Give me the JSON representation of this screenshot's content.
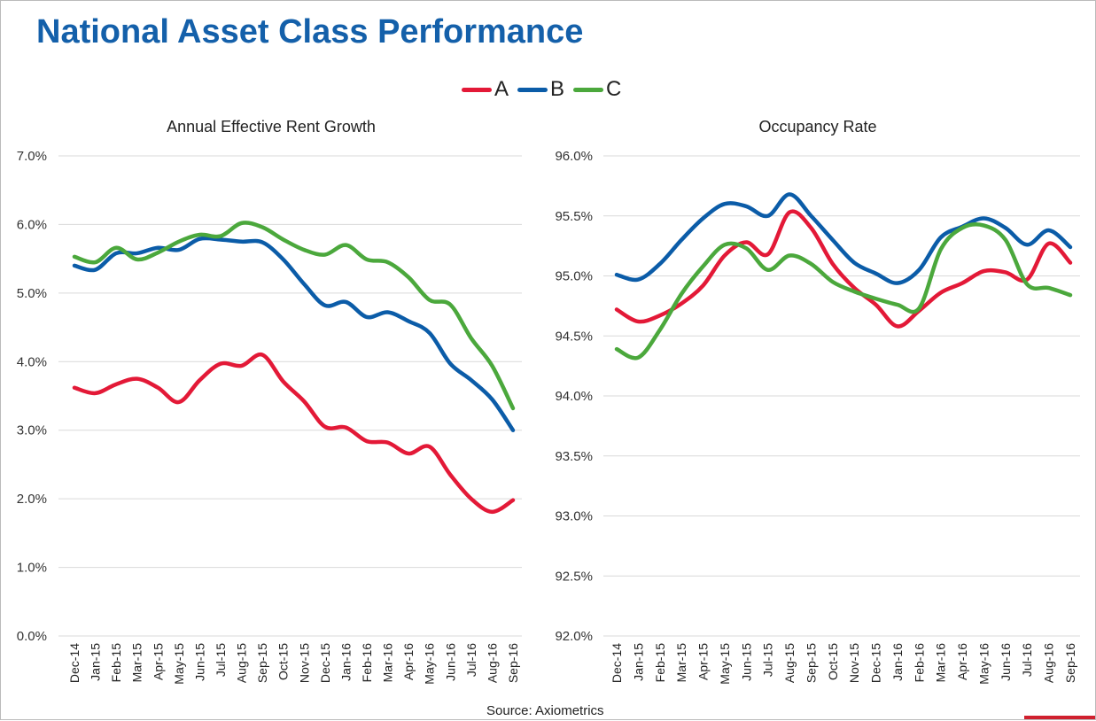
{
  "title": "National Asset Class Performance",
  "source": "Source: Axiometrics",
  "legend": [
    {
      "name": "A",
      "color": "#e31937"
    },
    {
      "name": "B",
      "color": "#0b5ca8"
    },
    {
      "name": "C",
      "color": "#4ba83c"
    }
  ],
  "chart_data": [
    {
      "type": "line",
      "title": "Annual Effective Rent Growth",
      "ylim": [
        0,
        7
      ],
      "yticks": [
        "0.0%",
        "1.0%",
        "2.0%",
        "3.0%",
        "4.0%",
        "5.0%",
        "6.0%",
        "7.0%"
      ],
      "grid": true,
      "categories": [
        "Dec-14",
        "Jan-15",
        "Feb-15",
        "Mar-15",
        "Apr-15",
        "May-15",
        "Jun-15",
        "Jul-15",
        "Aug-15",
        "Sep-15",
        "Oct-15",
        "Nov-15",
        "Dec-15",
        "Jan-16",
        "Feb-16",
        "Mar-16",
        "Apr-16",
        "May-16",
        "Jun-16",
        "Jul-16",
        "Aug-16",
        "Sep-16"
      ],
      "series": [
        {
          "name": "A",
          "values": [
            3.62,
            3.54,
            3.67,
            3.75,
            3.62,
            3.41,
            3.73,
            3.97,
            3.94,
            4.1,
            3.71,
            3.42,
            3.05,
            3.04,
            2.84,
            2.82,
            2.66,
            2.76,
            2.35,
            2.0,
            1.81,
            1.98
          ]
        },
        {
          "name": "B",
          "values": [
            5.4,
            5.34,
            5.58,
            5.58,
            5.66,
            5.63,
            5.79,
            5.78,
            5.75,
            5.74,
            5.49,
            5.13,
            4.82,
            4.87,
            4.65,
            4.72,
            4.59,
            4.42,
            3.97,
            3.73,
            3.45,
            3.0
          ]
        },
        {
          "name": "C",
          "values": [
            5.53,
            5.45,
            5.66,
            5.49,
            5.59,
            5.75,
            5.85,
            5.83,
            6.02,
            5.96,
            5.78,
            5.63,
            5.56,
            5.7,
            5.49,
            5.45,
            5.23,
            4.9,
            4.83,
            4.34,
            3.94,
            3.32
          ]
        }
      ]
    },
    {
      "type": "line",
      "title": "Occupancy Rate",
      "ylim": [
        92,
        96
      ],
      "yticks": [
        "92.0%",
        "92.5%",
        "93.0%",
        "93.5%",
        "94.0%",
        "94.5%",
        "95.0%",
        "95.5%",
        "96.0%"
      ],
      "grid": true,
      "categories": [
        "Dec-14",
        "Jan-15",
        "Feb-15",
        "Mar-15",
        "Apr-15",
        "May-15",
        "Jun-15",
        "Jul-15",
        "Aug-15",
        "Sep-15",
        "Oct-15",
        "Nov-15",
        "Dec-15",
        "Jan-16",
        "Feb-16",
        "Mar-16",
        "Apr-16",
        "May-16",
        "Jun-16",
        "Jul-16",
        "Aug-16",
        "Sep-16"
      ],
      "series": [
        {
          "name": "A",
          "values": [
            94.72,
            94.62,
            94.67,
            94.77,
            94.92,
            95.17,
            95.28,
            95.18,
            95.53,
            95.4,
            95.1,
            94.9,
            94.76,
            94.58,
            94.71,
            94.86,
            94.94,
            95.04,
            95.03,
            94.97,
            95.27,
            95.11
          ]
        },
        {
          "name": "B",
          "values": [
            95.01,
            94.97,
            95.1,
            95.3,
            95.48,
            95.6,
            95.58,
            95.5,
            95.68,
            95.5,
            95.3,
            95.11,
            95.02,
            94.94,
            95.05,
            95.32,
            95.41,
            95.48,
            95.4,
            95.26,
            95.38,
            95.24
          ]
        },
        {
          "name": "C",
          "values": [
            94.39,
            94.32,
            94.55,
            94.85,
            95.08,
            95.26,
            95.23,
            95.05,
            95.17,
            95.1,
            94.95,
            94.87,
            94.81,
            94.76,
            94.73,
            95.22,
            95.4,
            95.42,
            95.3,
            94.93,
            94.9,
            94.84
          ]
        }
      ]
    }
  ]
}
